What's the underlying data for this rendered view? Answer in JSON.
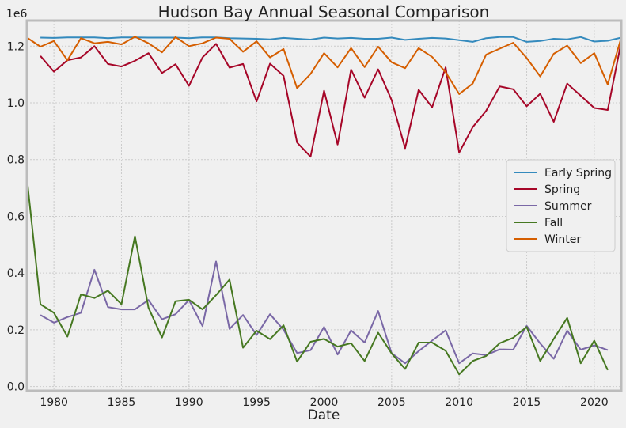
{
  "chart_data": {
    "type": "line",
    "title": "Hudson Bay Annual Seasonal Comparison",
    "xlabel": "Date",
    "ylabel": "",
    "y_offset_label": "1e6",
    "xlim": [
      1978,
      2022
    ],
    "ylim": [
      -0.015,
      1.29
    ],
    "x_ticks": [
      1980,
      1985,
      1990,
      1995,
      2000,
      2005,
      2010,
      2015,
      2020
    ],
    "y_ticks": [
      0.0,
      0.2,
      0.4,
      0.6,
      0.8,
      1.0,
      1.2
    ],
    "y_tick_labels": [
      "0.0",
      "0.2",
      "0.4",
      "0.6",
      "0.8",
      "1.0",
      "1.2"
    ],
    "grid": true,
    "legend_position": "right",
    "series": [
      {
        "name": "Early Spring",
        "color": "#348abd",
        "x": [
          1979,
          1980,
          1981,
          1982,
          1983,
          1984,
          1985,
          1986,
          1987,
          1988,
          1989,
          1990,
          1991,
          1992,
          1993,
          1994,
          1995,
          1996,
          1997,
          1998,
          1999,
          2000,
          2001,
          2002,
          2003,
          2004,
          2005,
          2006,
          2007,
          2008,
          2009,
          2010,
          2011,
          2012,
          2013,
          2014,
          2015,
          2016,
          2017,
          2018,
          2019,
          2020,
          2021,
          2022
        ],
        "values": [
          1.23,
          1.229,
          1.231,
          1.231,
          1.231,
          1.228,
          1.231,
          1.231,
          1.23,
          1.23,
          1.23,
          1.228,
          1.231,
          1.231,
          1.228,
          1.227,
          1.226,
          1.224,
          1.229,
          1.226,
          1.223,
          1.23,
          1.227,
          1.229,
          1.226,
          1.226,
          1.23,
          1.222,
          1.226,
          1.229,
          1.227,
          1.221,
          1.215,
          1.228,
          1.232,
          1.232,
          1.215,
          1.218,
          1.226,
          1.224,
          1.232,
          1.216,
          1.219,
          1.23
        ]
      },
      {
        "name": "Spring",
        "color": "#a60628",
        "x": [
          1979,
          1980,
          1981,
          1982,
          1983,
          1984,
          1985,
          1986,
          1987,
          1988,
          1989,
          1990,
          1991,
          1992,
          1993,
          1994,
          1995,
          1996,
          1997,
          1998,
          1999,
          2000,
          2001,
          2002,
          2003,
          2004,
          2005,
          2006,
          2007,
          2008,
          2009,
          2010,
          2011,
          2012,
          2013,
          2014,
          2015,
          2016,
          2017,
          2018,
          2019,
          2020,
          2021,
          2022
        ],
        "values": [
          1.165,
          1.11,
          1.15,
          1.16,
          1.2,
          1.137,
          1.128,
          1.148,
          1.175,
          1.105,
          1.136,
          1.06,
          1.16,
          1.208,
          1.124,
          1.137,
          1.005,
          1.138,
          1.095,
          0.86,
          0.81,
          1.043,
          0.853,
          1.117,
          1.018,
          1.118,
          1.01,
          0.84,
          1.046,
          0.984,
          1.125,
          0.825,
          0.914,
          0.972,
          1.058,
          1.048,
          0.988,
          1.032,
          0.933,
          1.068,
          1.025,
          0.982,
          0.975,
          1.215
        ]
      },
      {
        "name": "Summer",
        "color": "#7a68a6",
        "x": [
          1979,
          1980,
          1981,
          1982,
          1983,
          1984,
          1985,
          1986,
          1987,
          1988,
          1989,
          1990,
          1991,
          1992,
          1993,
          1994,
          1995,
          1996,
          1997,
          1998,
          1999,
          2000,
          2001,
          2002,
          2003,
          2004,
          2005,
          2006,
          2007,
          2008,
          2009,
          2010,
          2011,
          2012,
          2013,
          2014,
          2015,
          2016,
          2017,
          2018,
          2019,
          2020,
          2021
        ],
        "values": [
          0.252,
          0.225,
          0.245,
          0.26,
          0.412,
          0.28,
          0.272,
          0.272,
          0.305,
          0.237,
          0.255,
          0.305,
          0.213,
          0.441,
          0.203,
          0.252,
          0.182,
          0.255,
          0.2,
          0.118,
          0.128,
          0.21,
          0.113,
          0.198,
          0.155,
          0.266,
          0.118,
          0.082,
          0.125,
          0.162,
          0.198,
          0.082,
          0.117,
          0.111,
          0.131,
          0.13,
          0.214,
          0.152,
          0.098,
          0.197,
          0.13,
          0.145,
          0.129
        ]
      },
      {
        "name": "Fall",
        "color": "#467821",
        "x": [
          1978,
          1979,
          1980,
          1981,
          1982,
          1983,
          1984,
          1985,
          1986,
          1987,
          1988,
          1989,
          1990,
          1991,
          1992,
          1993,
          1994,
          1995,
          1996,
          1997,
          1998,
          1999,
          2000,
          2001,
          2002,
          2003,
          2004,
          2005,
          2006,
          2007,
          2008,
          2009,
          2010,
          2011,
          2012,
          2013,
          2014,
          2015,
          2016,
          2017,
          2018,
          2019,
          2020,
          2021
        ],
        "values": [
          0.735,
          0.29,
          0.26,
          0.176,
          0.325,
          0.312,
          0.338,
          0.29,
          0.53,
          0.278,
          0.173,
          0.301,
          0.306,
          0.272,
          0.322,
          0.377,
          0.137,
          0.197,
          0.167,
          0.216,
          0.088,
          0.158,
          0.168,
          0.141,
          0.153,
          0.09,
          0.19,
          0.117,
          0.062,
          0.155,
          0.155,
          0.126,
          0.043,
          0.09,
          0.108,
          0.153,
          0.172,
          0.21,
          0.09,
          0.168,
          0.242,
          0.082,
          0.162,
          0.058
        ]
      },
      {
        "name": "Winter",
        "color": "#d55e00",
        "x": [
          1978,
          1979,
          1980,
          1981,
          1982,
          1983,
          1984,
          1985,
          1986,
          1987,
          1988,
          1989,
          1990,
          1991,
          1992,
          1993,
          1994,
          1995,
          1996,
          1997,
          1998,
          1999,
          2000,
          2001,
          2002,
          2003,
          2004,
          2005,
          2006,
          2007,
          2008,
          2009,
          2010,
          2011,
          2012,
          2013,
          2014,
          2015,
          2016,
          2017,
          2018,
          2019,
          2020,
          2021,
          2022
        ],
        "values": [
          1.23,
          1.198,
          1.218,
          1.15,
          1.228,
          1.21,
          1.215,
          1.206,
          1.233,
          1.21,
          1.178,
          1.232,
          1.2,
          1.21,
          1.23,
          1.226,
          1.18,
          1.217,
          1.16,
          1.19,
          1.052,
          1.102,
          1.175,
          1.125,
          1.193,
          1.126,
          1.198,
          1.143,
          1.122,
          1.193,
          1.162,
          1.108,
          1.031,
          1.068,
          1.17,
          1.191,
          1.212,
          1.158,
          1.093,
          1.173,
          1.202,
          1.14,
          1.175,
          1.065,
          1.23
        ]
      }
    ]
  }
}
